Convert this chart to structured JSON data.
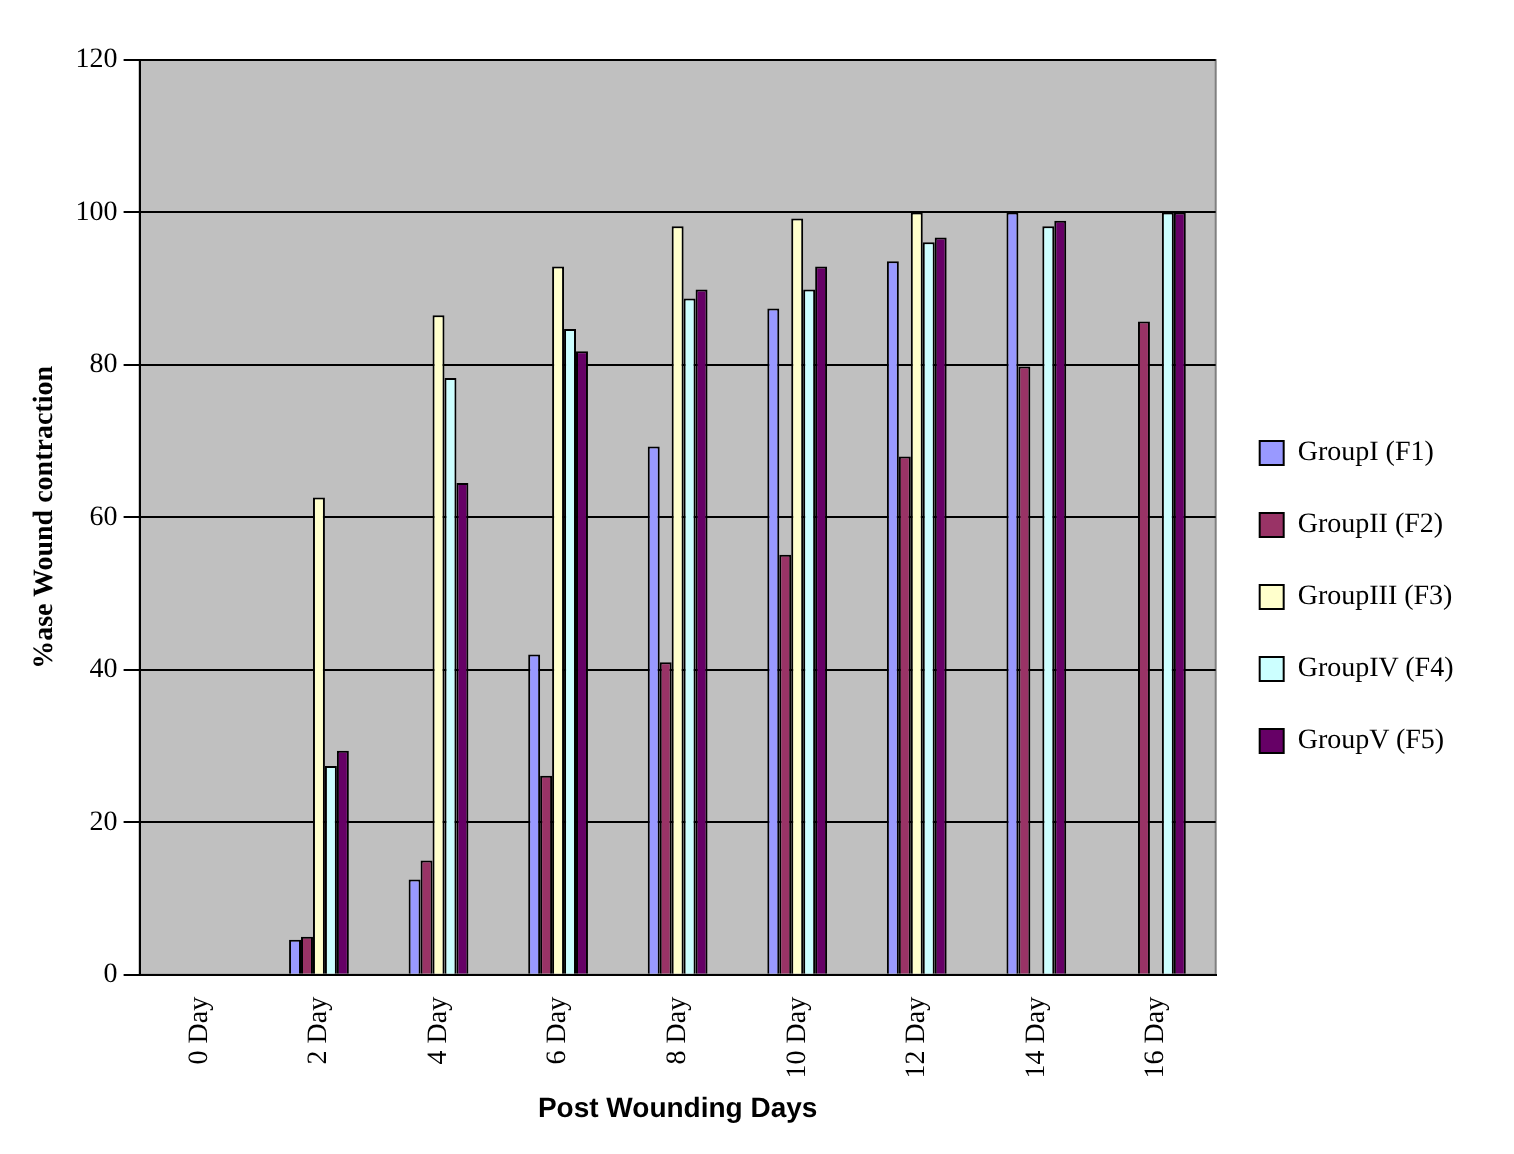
{
  "chart_data": {
    "type": "bar",
    "xlabel": "Post Wounding Days",
    "ylabel": "%ase Wound contraction",
    "categories": [
      "0 Day",
      "2 Day",
      "4 Day",
      "6 Day",
      "8 Day",
      "10 Day",
      "12 Day",
      "14 Day",
      "16 Day"
    ],
    "series": [
      {
        "name": "GroupI (F1)",
        "color": "#9999ff",
        "values": [
          null,
          4.6,
          12.5,
          42,
          69.3,
          87.4,
          93.6,
          100,
          null
        ]
      },
      {
        "name": "GroupII (F2)",
        "color": "#993366",
        "values": [
          null,
          5,
          15,
          26.1,
          41,
          55.1,
          68,
          79.8,
          85.7
        ]
      },
      {
        "name": "GroupIII (F3)",
        "color": "#ffffcc",
        "values": [
          null,
          62.6,
          86.5,
          92.9,
          98.2,
          99.2,
          100,
          null,
          null
        ]
      },
      {
        "name": "GroupIV (F4)",
        "color": "#ccffff",
        "values": [
          null,
          27.4,
          78.3,
          84.7,
          88.7,
          89.9,
          96.1,
          98.2,
          100
        ]
      },
      {
        "name": "GroupV (F5)",
        "color": "#660066",
        "values": [
          null,
          29.4,
          64.5,
          81.8,
          89.9,
          92.9,
          96.7,
          98.9,
          100
        ]
      }
    ],
    "ylim": [
      0,
      120
    ],
    "yticks": [
      0,
      20,
      40,
      60,
      80,
      100,
      120
    ],
    "grid": "y",
    "legend": "right"
  }
}
